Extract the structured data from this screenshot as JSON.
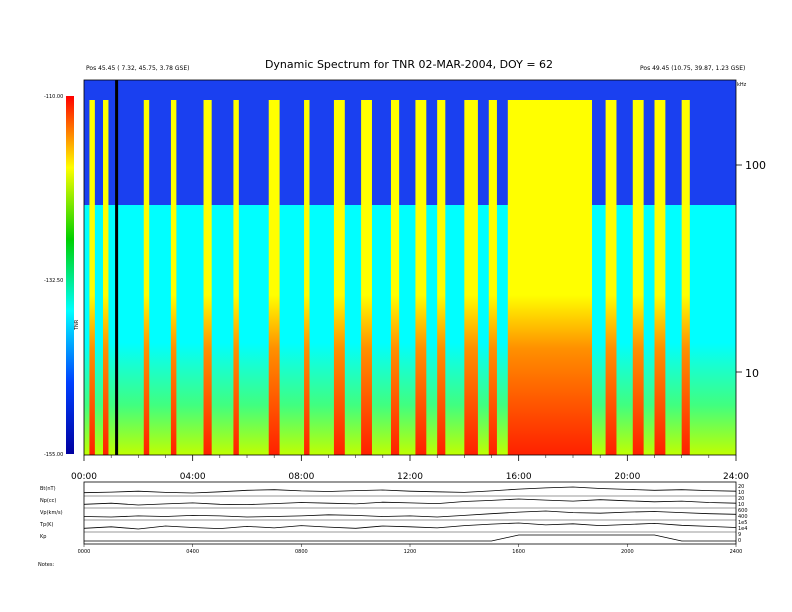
{
  "header": {
    "left_line1": "",
    "left_line2": "",
    "left_pos": "Pos   45.45 ( 7.32, 45.75, 3.78 GSE)",
    "right_line1": "",
    "right_line2": "",
    "right_pos": "Pos   49.45 (10.75, 39.87, 1.23 GSE)",
    "freq_unit": "kHz"
  },
  "chart_data": [
    {
      "type": "heatmap",
      "title": "Dynamic Spectrum for TNR 02-MAR-2004, DOY = 62",
      "x_tick_labels": [
        "00:00",
        "04:00",
        "08:00",
        "12:00",
        "16:00",
        "20:00",
        "24:00"
      ],
      "x_range_hours": [
        0,
        24
      ],
      "y_scale": "log",
      "y_tick_labels": [
        "100",
        "10"
      ],
      "y_range_khz": [
        4,
        245
      ],
      "colorbar_labels": [
        "-110.00",
        "-132.50",
        "-155.00"
      ],
      "colorbar_range_db": [
        -155,
        -110
      ],
      "colorbar_axis_label": "TNR",
      "colors": {
        "low": "#0000c8",
        "background": "#00ffff",
        "mid": "#ffff00",
        "high": "#ff0000"
      },
      "marker_vertical_line_hour": 1.2,
      "active_bands_hours": [
        [
          0.2,
          0.4
        ],
        [
          0.7,
          0.9
        ],
        [
          2.2,
          2.4
        ],
        [
          3.2,
          3.4
        ],
        [
          4.4,
          4.7
        ],
        [
          5.5,
          5.7
        ],
        [
          6.8,
          7.2
        ],
        [
          8.1,
          8.3
        ],
        [
          9.2,
          9.6
        ],
        [
          10.2,
          10.6
        ],
        [
          11.3,
          11.6
        ],
        [
          12.2,
          12.6
        ],
        [
          13.0,
          13.3
        ],
        [
          14.0,
          14.5
        ],
        [
          14.9,
          15.2
        ],
        [
          15.6,
          18.7
        ],
        [
          19.2,
          19.6
        ],
        [
          20.2,
          20.6
        ],
        [
          21.0,
          21.4
        ],
        [
          22.0,
          22.3
        ]
      ]
    },
    {
      "type": "line",
      "title": "",
      "x_tick_labels": [
        "0000",
        "0400",
        "0800",
        "1200",
        "1600",
        "2000",
        "2400"
      ],
      "series": [
        {
          "name": "Bt(nT)",
          "right_ticks": [
            "20",
            "10"
          ],
          "values": [
            8,
            8.2,
            8.5,
            8.1,
            7.9,
            8.3,
            8.8,
            9.0,
            8.6,
            8.4,
            8.7,
            8.9,
            8.5,
            8.3,
            8.1,
            8.6,
            9.2,
            9.6,
            9.9,
            9.4,
            9.1,
            8.8,
            9.0,
            8.7,
            8.5
          ]
        },
        {
          "name": "Np(cc)",
          "right_ticks": [
            "20",
            "10"
          ],
          "values": [
            6,
            6.3,
            5.8,
            6.1,
            6.4,
            6.0,
            5.9,
            6.2,
            6.5,
            6.3,
            6.1,
            6.6,
            6.4,
            6.2,
            6.8,
            7.1,
            7.5,
            7.2,
            6.9,
            7.3,
            7.0,
            6.7,
            6.9,
            6.5,
            6.3
          ]
        },
        {
          "name": "Vp(km/s)",
          "right_ticks": [
            "600",
            "400"
          ],
          "values": [
            5.1,
            5.0,
            5.2,
            5.1,
            5.3,
            5.2,
            5.0,
            5.1,
            5.2,
            5.4,
            5.3,
            5.1,
            5.2,
            5.0,
            5.3,
            5.6,
            5.9,
            6.1,
            5.8,
            5.7,
            5.9,
            6.0,
            5.8,
            5.6,
            5.5
          ]
        },
        {
          "name": "Tp(K)",
          "right_ticks": [
            "1e5",
            "1e4"
          ],
          "values": [
            4.2,
            4.6,
            4.0,
            4.8,
            4.4,
            4.1,
            4.7,
            4.3,
            4.9,
            4.5,
            4.2,
            4.8,
            4.6,
            4.3,
            4.9,
            5.3,
            5.6,
            5.1,
            5.4,
            4.9,
            5.2,
            5.5,
            5.0,
            4.7,
            4.4
          ]
        },
        {
          "name": "Kp",
          "right_ticks": [
            "9",
            "0"
          ],
          "values": [
            2,
            2,
            2,
            2,
            2,
            2,
            2,
            2,
            2,
            2,
            2,
            2,
            2,
            2,
            2,
            2,
            3,
            3,
            3,
            3,
            3,
            3,
            2,
            2,
            2
          ]
        }
      ]
    }
  ],
  "footer": {
    "label": "Notes:"
  }
}
